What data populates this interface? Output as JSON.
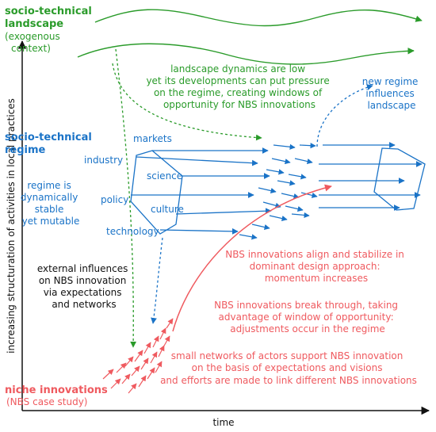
{
  "axes": {
    "y_label": "increasing structuration of activities in local practices",
    "x_label": "time"
  },
  "landscape": {
    "title_lines": [
      "socio-technical",
      "landscape"
    ],
    "sub_lines": [
      "(exogenous",
      "context)"
    ],
    "note_lines": [
      "landscape dynamics are low",
      "yet its developments can put pressure",
      "on the regime, creating windows of",
      "opportunity for NBS innovations"
    ]
  },
  "regime": {
    "title_lines": [
      "socio-technical",
      "regime"
    ],
    "note_lines": [
      "regime is",
      "dynamically",
      "stable",
      "yet mutable"
    ],
    "dimensions": [
      "markets",
      "industry",
      "science",
      "policy",
      "culture",
      "technology"
    ],
    "influence_lines": [
      "new regime",
      "influences",
      "landscape"
    ]
  },
  "external": {
    "lines": [
      "external influences",
      "on NBS innovation",
      "via expectations",
      "and networks"
    ]
  },
  "stages": [
    {
      "lines": [
        "NBS innovations align and stabilize in",
        "dominant design approach:",
        "momentum increases"
      ]
    },
    {
      "lines": [
        "NBS innovations break through, taking",
        "advantage of window of opportunity:",
        "adjustments occur in the regime"
      ]
    },
    {
      "lines": [
        "small networks of actors support NBS innovation",
        "on the basis of expectations and visions",
        "and efforts are made to link different NBS innovations"
      ]
    }
  ],
  "niche": {
    "title": "niche innovations",
    "sub": "(NBS case study)"
  },
  "colors": {
    "landscape": "#2a9b2a",
    "regime": "#1a73c7",
    "niche": "#ef5a5f",
    "axis": "#111111"
  }
}
